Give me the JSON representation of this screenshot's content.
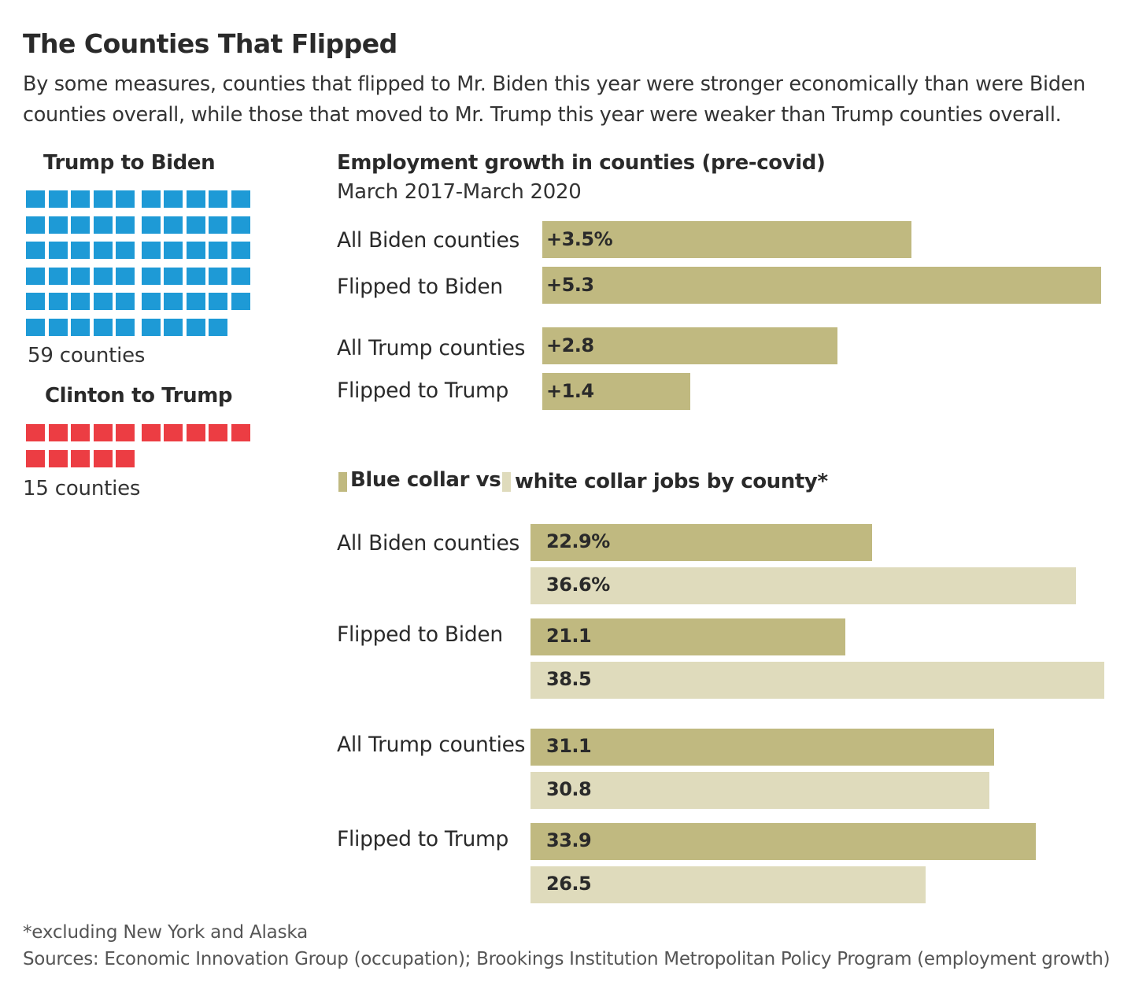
{
  "title": "The Counties That Flipped",
  "subtitle": "By some measures, counties that flipped to Mr. Biden this year were stronger economically than were Biden counties overall, while those that moved to Mr. Trump this year were weaker than Trump counties overall.",
  "waffles": [
    {
      "heading": "Trump to Biden",
      "count": 59,
      "count_label": "59 counties",
      "color": "#1e9ad6"
    },
    {
      "heading": "Clinton to Trump",
      "count": 15,
      "count_label": "15 counties",
      "color": "#ec3d43"
    }
  ],
  "colors": {
    "blue_collar": "#c0b980",
    "white_collar": "#dfdbbc"
  },
  "chart_data": [
    {
      "type": "bar",
      "orientation": "horizontal",
      "title": "Employment growth in counties (pre-covid)",
      "subtitle": "March 2017-March 2020",
      "categories": [
        "All Biden counties",
        "Flipped to Biden",
        "All Trump counties",
        "Flipped to Trump"
      ],
      "values": [
        3.5,
        5.3,
        2.8,
        1.4
      ],
      "data_labels": [
        "+3.5%",
        "+5.3",
        "+2.8",
        "+1.4"
      ],
      "xlim": [
        0,
        5.3
      ],
      "grid": false
    },
    {
      "type": "bar",
      "orientation": "horizontal",
      "title": "Blue collar vs. white collar jobs by county*",
      "legend_parts": [
        "Blue collar vs.",
        "white collar jobs by county*"
      ],
      "categories": [
        "All Biden counties",
        "Flipped to Biden",
        "All Trump counties",
        "Flipped to Trump"
      ],
      "series": [
        {
          "name": "Blue collar",
          "values": [
            22.9,
            21.1,
            31.1,
            33.9
          ],
          "data_labels": [
            "22.9%",
            "21.1",
            "31.1",
            "33.9"
          ]
        },
        {
          "name": "White collar",
          "values": [
            36.6,
            38.5,
            30.8,
            26.5
          ],
          "data_labels": [
            "36.6%",
            "38.5",
            "30.8",
            "26.5"
          ]
        }
      ],
      "xlim": [
        0,
        38.5
      ],
      "legend": "top",
      "grid": false
    }
  ],
  "footnote": "*excluding New York and Alaska",
  "sources": "Sources: Economic Innovation Group (occupation); Brookings Institution Metropolitan Policy Program (employment growth)"
}
